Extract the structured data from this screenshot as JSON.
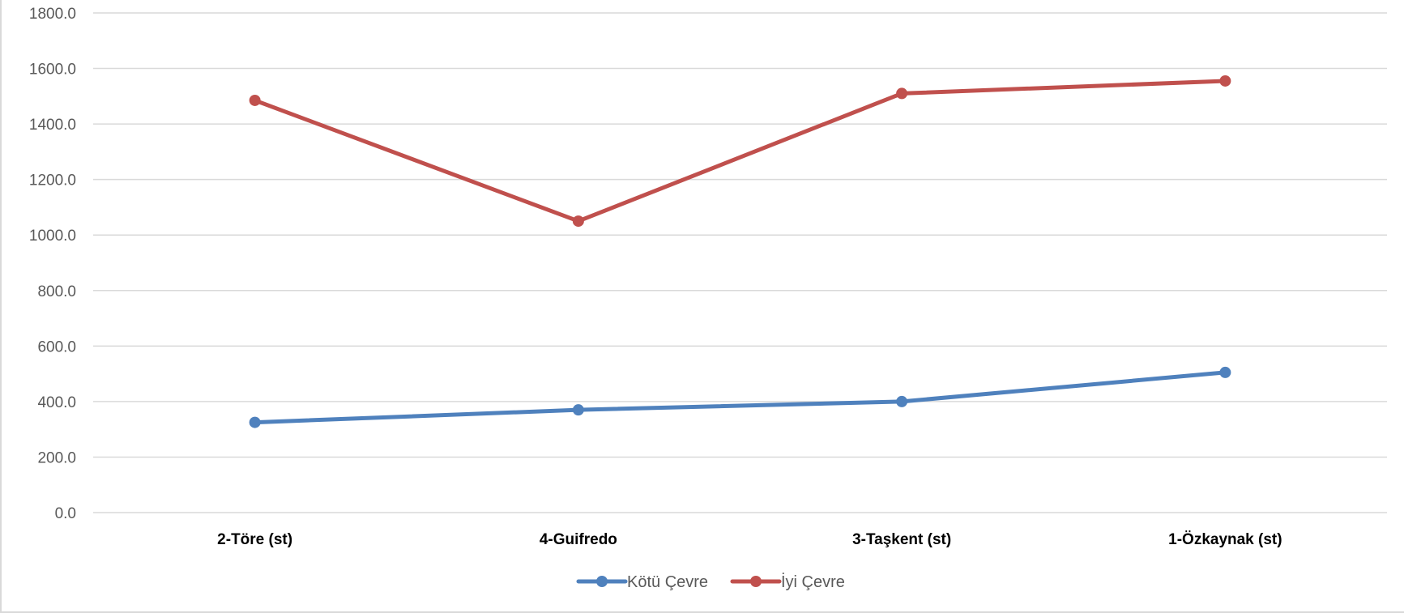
{
  "chart_data": {
    "type": "line",
    "categories": [
      "2-Töre (st)",
      "4-Guifredo",
      "3-Taşkent (st)",
      "1-Özkaynak (st)"
    ],
    "series": [
      {
        "name": "Kötü Çevre",
        "values": [
          325,
          370,
          400,
          505
        ],
        "color": "#4f81bd"
      },
      {
        "name": "İyi Çevre",
        "values": [
          1485,
          1050,
          1510,
          1555
        ],
        "color": "#c0504d"
      }
    ],
    "ylim": [
      0,
      1800
    ],
    "yticks": [
      "0.0",
      "200.0",
      "400.0",
      "600.0",
      "800.0",
      "1000.0",
      "1200.0",
      "1400.0",
      "1600.0",
      "1800.0"
    ],
    "grid": true,
    "legend_position": "bottom"
  }
}
